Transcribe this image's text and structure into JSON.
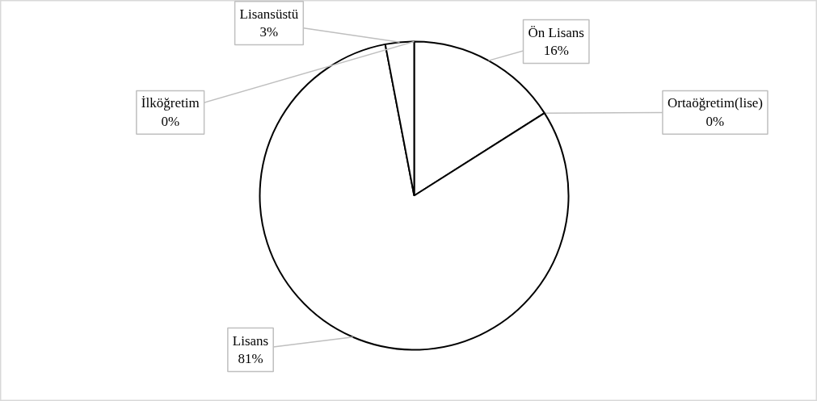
{
  "chart_data": {
    "type": "pie",
    "categories": [
      "Ön Lisans",
      "Ortaöğretim(lise)",
      "Lisans",
      "Lisansüstü",
      "İlköğretim"
    ],
    "values": [
      16,
      0,
      81,
      3,
      0
    ],
    "colors": [
      "#ffffff",
      "#ffffff",
      "#ffffff",
      "#ffffff",
      "#ffffff"
    ],
    "value_labels": [
      "16%",
      "0%",
      "81%",
      "3%",
      "0%"
    ]
  }
}
